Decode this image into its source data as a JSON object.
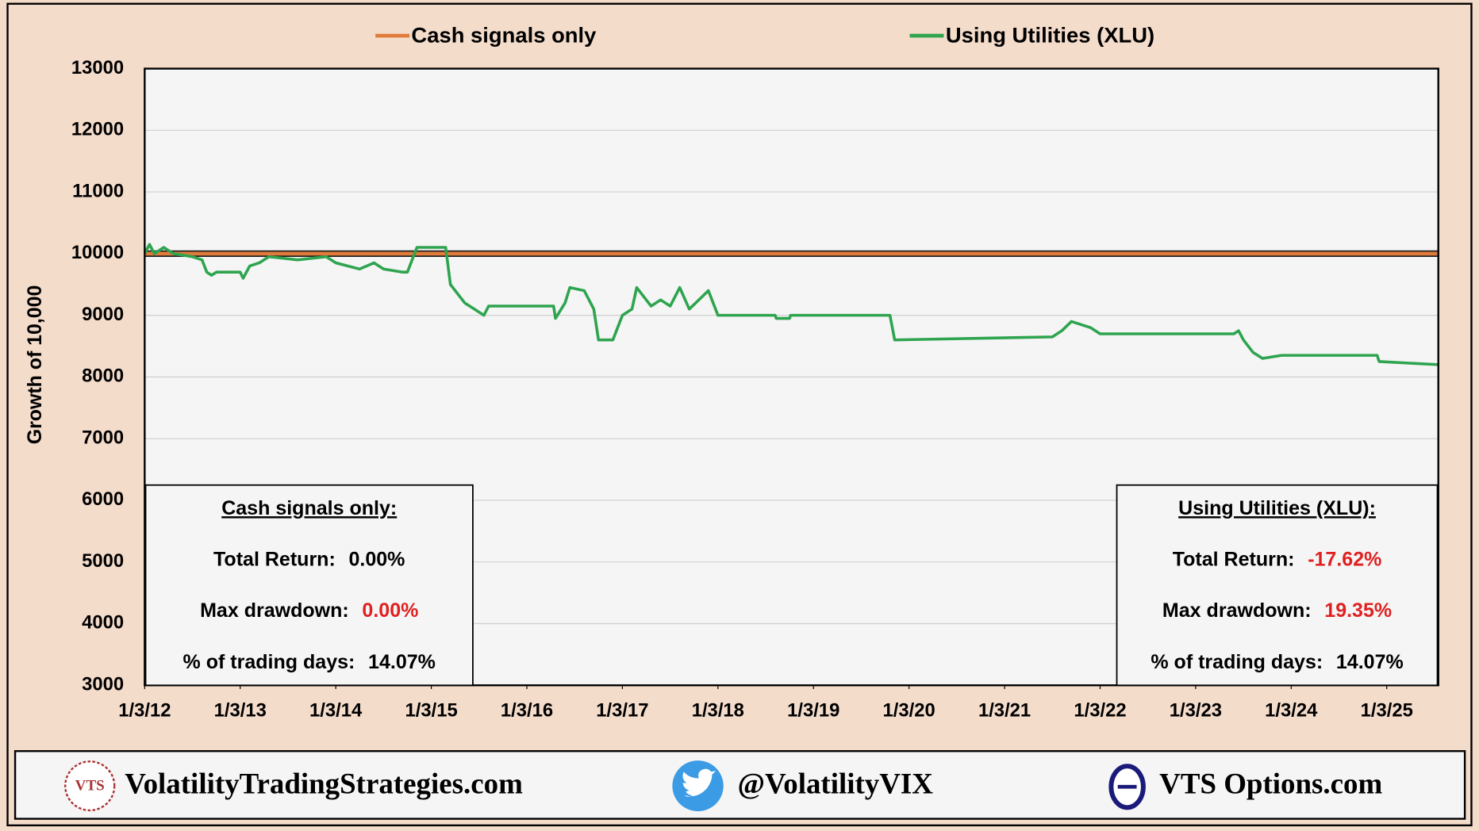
{
  "chart_data": {
    "type": "line",
    "y_label": "Growth of 10,000",
    "xlim": [
      2012,
      2025.54
    ],
    "xticks": [
      {
        "value": 2012,
        "label": "1/3/12"
      },
      {
        "value": 2013,
        "label": "1/3/13"
      },
      {
        "value": 2014,
        "label": "1/3/14"
      },
      {
        "value": 2015,
        "label": "1/3/15"
      },
      {
        "value": 2016,
        "label": "1/3/16"
      },
      {
        "value": 2017,
        "label": "1/3/17"
      },
      {
        "value": 2018,
        "label": "1/3/18"
      },
      {
        "value": 2019,
        "label": "1/3/19"
      },
      {
        "value": 2020,
        "label": "1/3/20"
      },
      {
        "value": 2021,
        "label": "1/3/21"
      },
      {
        "value": 2022,
        "label": "1/3/22"
      },
      {
        "value": 2023,
        "label": "1/3/23"
      },
      {
        "value": 2024,
        "label": "1/3/24"
      },
      {
        "value": 2025,
        "label": "1/3/25"
      }
    ],
    "ylim": [
      3000,
      13000
    ],
    "yticks": [
      3000,
      4000,
      5000,
      6000,
      7000,
      8000,
      9000,
      10000,
      11000,
      12000,
      13000
    ],
    "grid": true,
    "legend": "top",
    "series": [
      {
        "name": "Cash signals only",
        "color": "#e07b39",
        "x": [
          2012,
          2025.54
        ],
        "values": [
          10000,
          10000
        ]
      },
      {
        "name": "Using Utilities  (XLU)",
        "color": "#2ea44f",
        "x": [
          2012,
          2012.05,
          2012.1,
          2012.2,
          2012.3,
          2012.5,
          2012.6,
          2012.65,
          2012.7,
          2012.75,
          2013.0,
          2013.03,
          2013.1,
          2013.2,
          2013.3,
          2013.6,
          2013.9,
          2014.0,
          2014.25,
          2014.4,
          2014.5,
          2014.7,
          2014.75,
          2014.85,
          2015.15,
          2015.2,
          2015.35,
          2015.45,
          2015.55,
          2015.6,
          2016.28,
          2016.3,
          2016.4,
          2016.45,
          2016.6,
          2016.7,
          2016.75,
          2016.9,
          2017.0,
          2017.1,
          2017.15,
          2017.3,
          2017.4,
          2017.5,
          2017.6,
          2017.7,
          2017.9,
          2018.0,
          2018.6,
          2018.61,
          2018.75,
          2018.76,
          2019.8,
          2019.85,
          2021.5,
          2021.6,
          2021.7,
          2021.9,
          2022.0,
          2023.4,
          2023.45,
          2023.5,
          2023.6,
          2023.7,
          2023.9,
          2024.9,
          2024.92,
          2025.54
        ],
        "values": [
          10000,
          10150,
          10000,
          10100,
          10000,
          9950,
          9900,
          9700,
          9650,
          9700,
          9700,
          9600,
          9800,
          9850,
          9950,
          9900,
          9950,
          9850,
          9750,
          9850,
          9750,
          9700,
          9700,
          10100,
          10100,
          9500,
          9200,
          9100,
          9000,
          9150,
          9150,
          8950,
          9200,
          9450,
          9400,
          9100,
          8600,
          8600,
          9000,
          9100,
          9450,
          9150,
          9250,
          9150,
          9450,
          9100,
          9400,
          9000,
          9000,
          8950,
          8950,
          9000,
          9000,
          8600,
          8650,
          8750,
          8900,
          8800,
          8700,
          8700,
          8750,
          8600,
          8400,
          8300,
          8350,
          8350,
          8250,
          8200
        ]
      }
    ],
    "stat_boxes": [
      {
        "title": "Cash signals only:",
        "rows": [
          {
            "label": "Total Return:",
            "value": "0.00%",
            "color": "#000000"
          },
          {
            "label": "Max drawdown:",
            "value": "0.00%",
            "color": "#e02020"
          },
          {
            "label": "% of trading days:",
            "value": "14.07%",
            "color": "#000000"
          }
        ]
      },
      {
        "title": "Using Utilities  (XLU):",
        "rows": [
          {
            "label": "Total Return:",
            "value": "-17.62%",
            "color": "#e02020"
          },
          {
            "label": "Max drawdown:",
            "value": "19.35%",
            "color": "#e02020"
          },
          {
            "label": "% of trading days:",
            "value": "14.07%",
            "color": "#000000"
          }
        ]
      }
    ]
  },
  "footer": {
    "site": "VolatilityTradingStrategies.com",
    "twitter": "@VolatilityVIX",
    "options": "VTS Options.com"
  }
}
